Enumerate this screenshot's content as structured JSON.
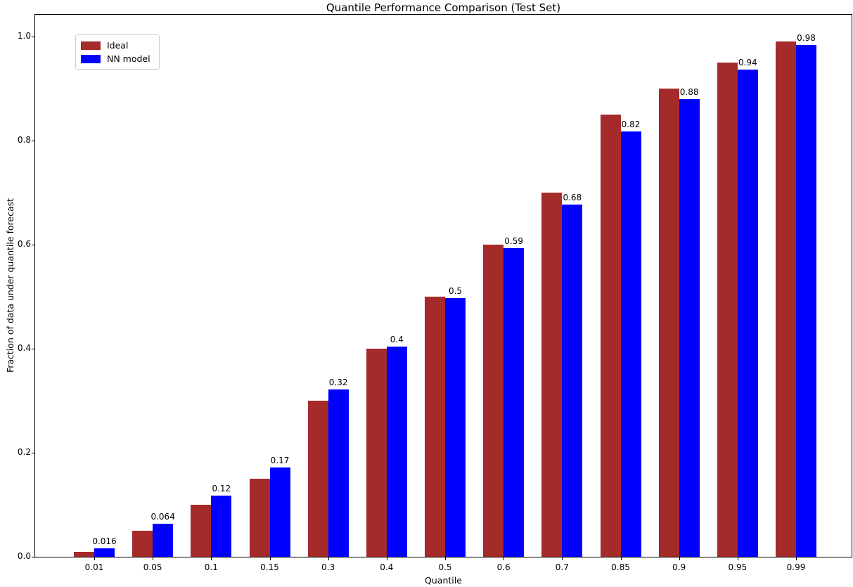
{
  "chart_data": {
    "type": "bar",
    "title": "Quantile Performance Comparison (Test Set)",
    "xlabel": "Quantile",
    "ylabel": "Fraction of data under quantile forecast",
    "categories": [
      "0.01",
      "0.05",
      "0.1",
      "0.15",
      "0.3",
      "0.4",
      "0.5",
      "0.6",
      "0.7",
      "0.85",
      "0.9",
      "0.95",
      "0.99"
    ],
    "series": [
      {
        "name": "Ideal",
        "color": "#a52a2a",
        "values": [
          0.01,
          0.05,
          0.1,
          0.15,
          0.3,
          0.4,
          0.5,
          0.6,
          0.7,
          0.85,
          0.9,
          0.95,
          0.99
        ]
      },
      {
        "name": "NN model",
        "color": "#0000ff",
        "values": [
          0.016,
          0.064,
          0.117,
          0.172,
          0.322,
          0.404,
          0.497,
          0.593,
          0.677,
          0.818,
          0.88,
          0.936,
          0.984
        ],
        "bar_labels": [
          "0.016",
          "0.064",
          "0.12",
          "0.17",
          "0.32",
          "0.4",
          "0.5",
          "0.59",
          "0.68",
          "0.82",
          "0.88",
          "0.94",
          "0.98"
        ]
      }
    ],
    "yticks": {
      "values": [
        0,
        0.2,
        0.4,
        0.6,
        0.8,
        1.0
      ],
      "labels": [
        "0.0",
        "0.2",
        "0.4",
        "0.6",
        "0.8",
        "1.0"
      ]
    },
    "ylim": [
      0,
      1.042
    ],
    "grid": false,
    "legend_position": "upper left",
    "colors": {
      "axis": "#000000",
      "background": "#ffffff"
    }
  }
}
